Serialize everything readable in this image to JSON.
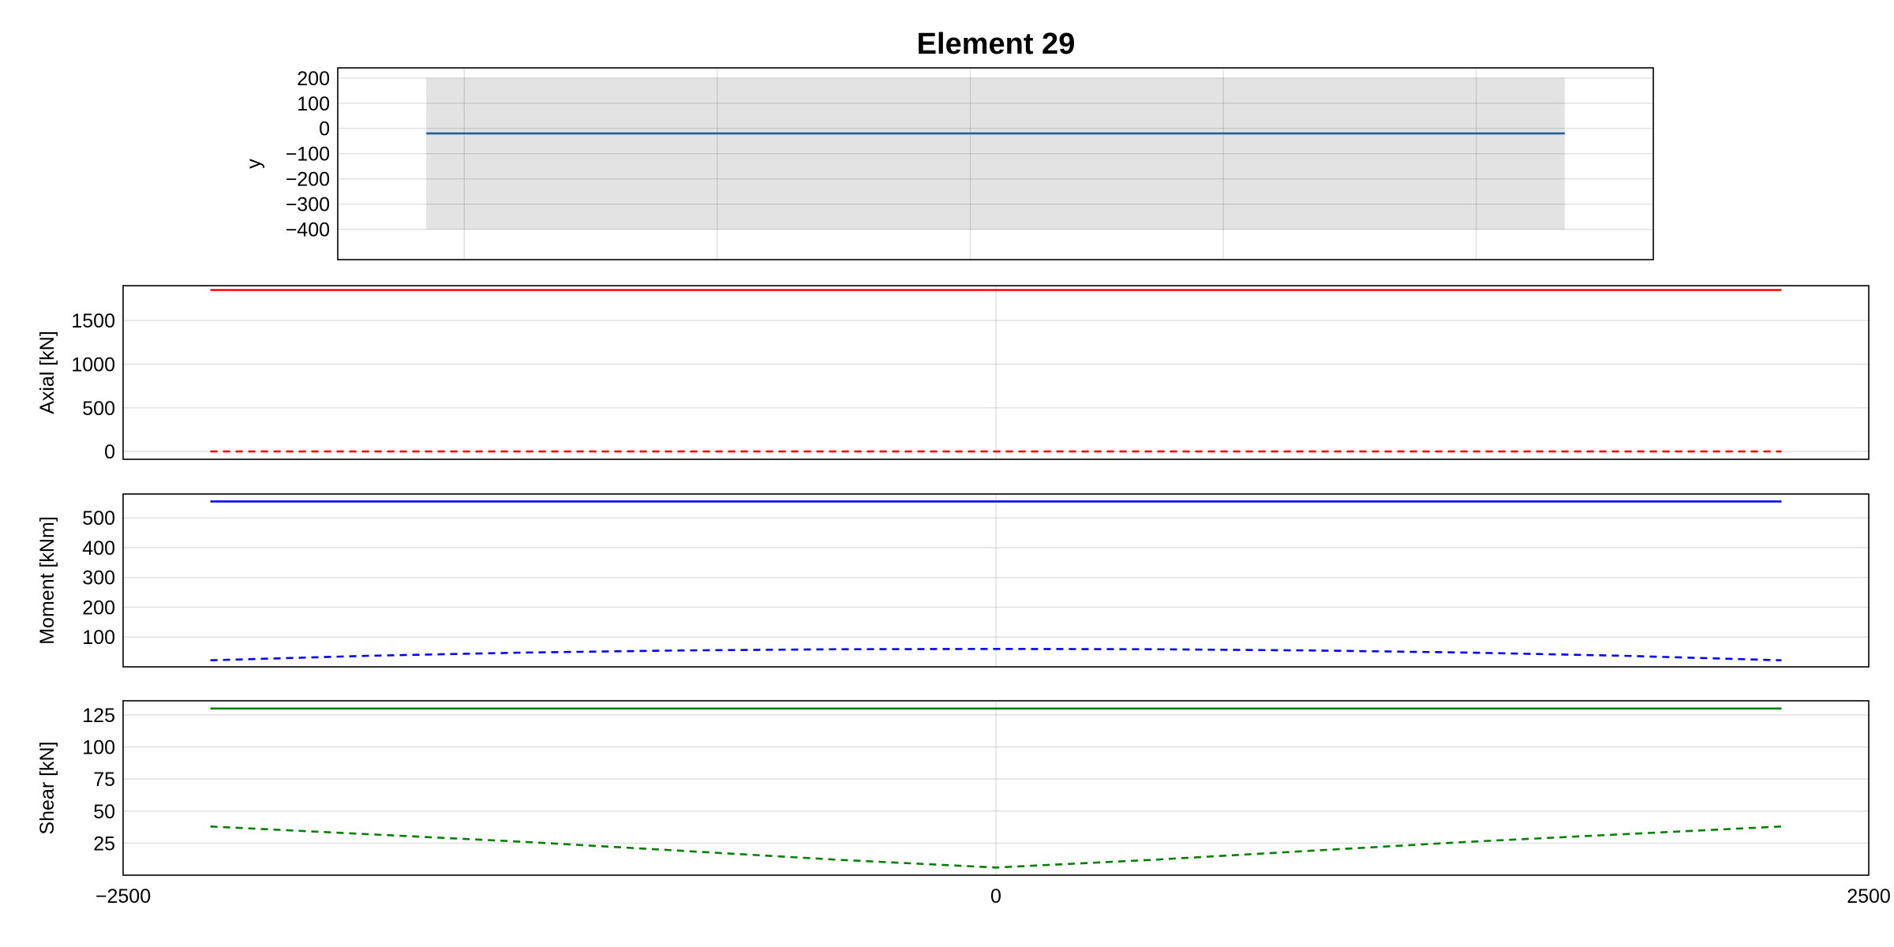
{
  "figure": {
    "title": "Element 29"
  },
  "chart_data": [
    {
      "id": "section",
      "type": "area",
      "title": "Element 29",
      "xlabel": "",
      "ylabel": "y",
      "xlim": [
        -2000,
        3200
      ],
      "ylim": [
        -520,
        240
      ],
      "xticks": [
        -1500,
        -500,
        500,
        1500,
        2500
      ],
      "yticks": [
        200,
        100,
        0,
        -100,
        -200,
        -300,
        -400
      ],
      "ytick_labels": [
        "200",
        "100",
        "0",
        "−100",
        "−200",
        "−300",
        "−400"
      ],
      "grid": true,
      "band": {
        "x": [
          -1650,
          2850
        ],
        "y_min": -400,
        "y_max": 200,
        "color": "#e3e3e3"
      },
      "series": [
        {
          "x": [
            -1650,
            2850
          ],
          "y": [
            -20,
            -20
          ],
          "color": "#1f5f9e",
          "dash": "solid"
        }
      ]
    },
    {
      "id": "axial",
      "type": "line",
      "ylabel": "Axial [kN]",
      "xlim": [
        -2500,
        2500
      ],
      "ylim": [
        -90,
        1900
      ],
      "yticks": [
        0,
        500,
        1000,
        1500
      ],
      "ytick_labels": [
        "0",
        "500",
        "1000",
        "1500"
      ],
      "grid": true,
      "series": [
        {
          "x": [
            -2250,
            2250
          ],
          "y": [
            1850,
            1850
          ],
          "color": "#ff0000",
          "dash": "solid"
        },
        {
          "x": [
            -2250,
            2250
          ],
          "y": [
            0,
            0
          ],
          "color": "#ff0000",
          "dash": "dashed"
        }
      ]
    },
    {
      "id": "moment",
      "type": "line",
      "ylabel": "Moment [kNm]",
      "xlim": [
        -2500,
        2500
      ],
      "ylim": [
        0,
        580
      ],
      "yticks": [
        100,
        200,
        300,
        400,
        500
      ],
      "ytick_labels": [
        "100",
        "200",
        "300",
        "400",
        "500"
      ],
      "grid": true,
      "series": [
        {
          "x": [
            -2250,
            2250
          ],
          "y": [
            555,
            555
          ],
          "color": "#0000ff",
          "dash": "solid"
        },
        {
          "x": [
            -2250,
            -1800,
            -1350,
            -900,
            -450,
            0,
            450,
            900,
            1350,
            1800,
            2250
          ],
          "y": [
            22,
            37,
            48,
            55,
            59,
            60,
            59,
            55,
            48,
            37,
            22
          ],
          "color": "#0000ff",
          "dash": "dashed"
        }
      ]
    },
    {
      "id": "shear",
      "type": "line",
      "ylabel": "Shear [kN]",
      "xlabel": "",
      "xlim": [
        -2500,
        2500
      ],
      "ylim": [
        0,
        136
      ],
      "xticks": [
        -2500,
        0,
        2500
      ],
      "xtick_labels": [
        "−2500",
        "0",
        "2500"
      ],
      "yticks": [
        25,
        50,
        75,
        100,
        125
      ],
      "ytick_labels": [
        "25",
        "50",
        "75",
        "100",
        "125"
      ],
      "grid": true,
      "series": [
        {
          "x": [
            -2250,
            2250
          ],
          "y": [
            130,
            130
          ],
          "color": "#008000",
          "dash": "solid"
        },
        {
          "x": [
            -2250,
            -1800,
            -1350,
            -900,
            -450,
            0,
            450,
            900,
            1350,
            1800,
            2250
          ],
          "y": [
            38,
            32,
            26,
            19,
            12,
            6,
            12,
            19,
            26,
            32,
            38
          ],
          "color": "#008000",
          "dash": "dashed"
        }
      ]
    }
  ]
}
